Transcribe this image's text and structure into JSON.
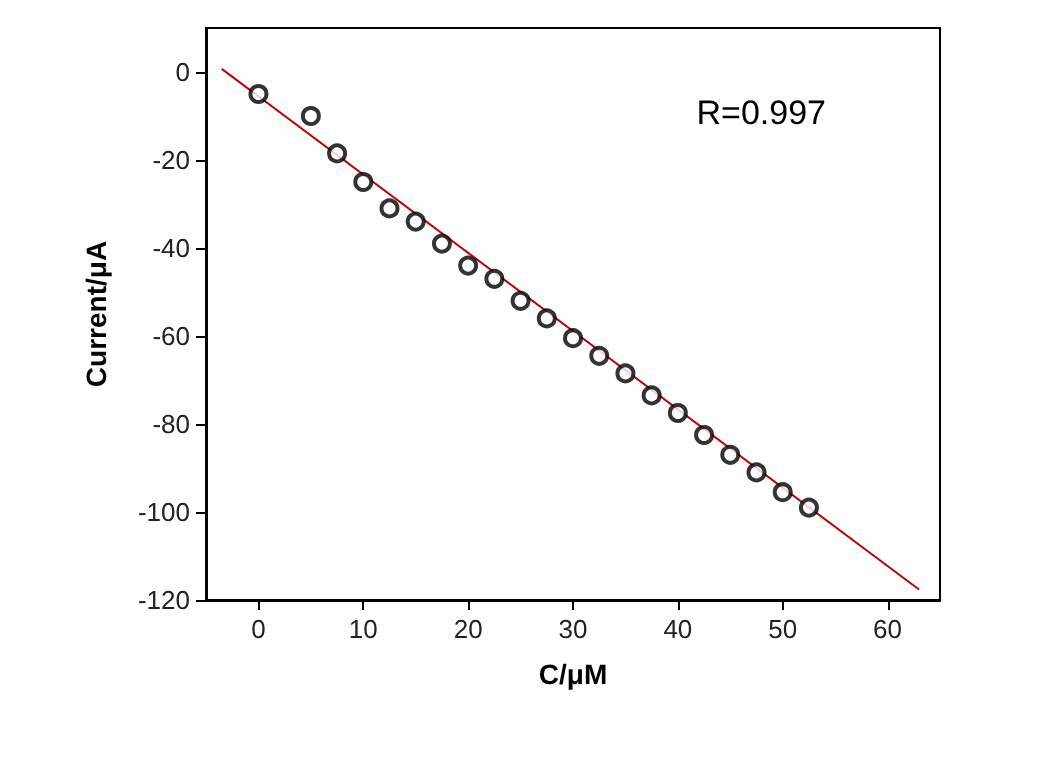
{
  "chart_data": {
    "type": "scatter",
    "xlabel": "C/μM",
    "ylabel": "Current/μA",
    "annotations": [
      "R=0.997"
    ],
    "xlim": [
      -5,
      65
    ],
    "xticks": [
      0,
      10,
      20,
      30,
      40,
      50,
      60
    ],
    "ylim": [
      -120,
      10
    ],
    "yticks": [
      -120,
      -100,
      -80,
      -60,
      -40,
      -20,
      0
    ],
    "marker": "circle",
    "grid": false,
    "series": [
      {
        "color": "#000000",
        "x": [
          0,
          5,
          7.5,
          10,
          12.5,
          15,
          17.5,
          20,
          22.5,
          25,
          27.5,
          30,
          32.5,
          35,
          37.5,
          40,
          42.5,
          45,
          47.5,
          50,
          52.5
        ],
        "values": [
          -5,
          -10,
          -18.5,
          -25,
          -31,
          -34,
          -39,
          -44,
          -47,
          -52,
          -56,
          -60.5,
          -64.5,
          -68.5,
          -73.5,
          -77.5,
          -82.5,
          -87,
          -91,
          -95.5,
          -99
        ]
      },
      {
        "type": "line",
        "marker": "none",
        "color": "#c00000",
        "x": [
          -3.5,
          63
        ],
        "values": [
          0.7,
          -117.6
        ]
      }
    ]
  }
}
